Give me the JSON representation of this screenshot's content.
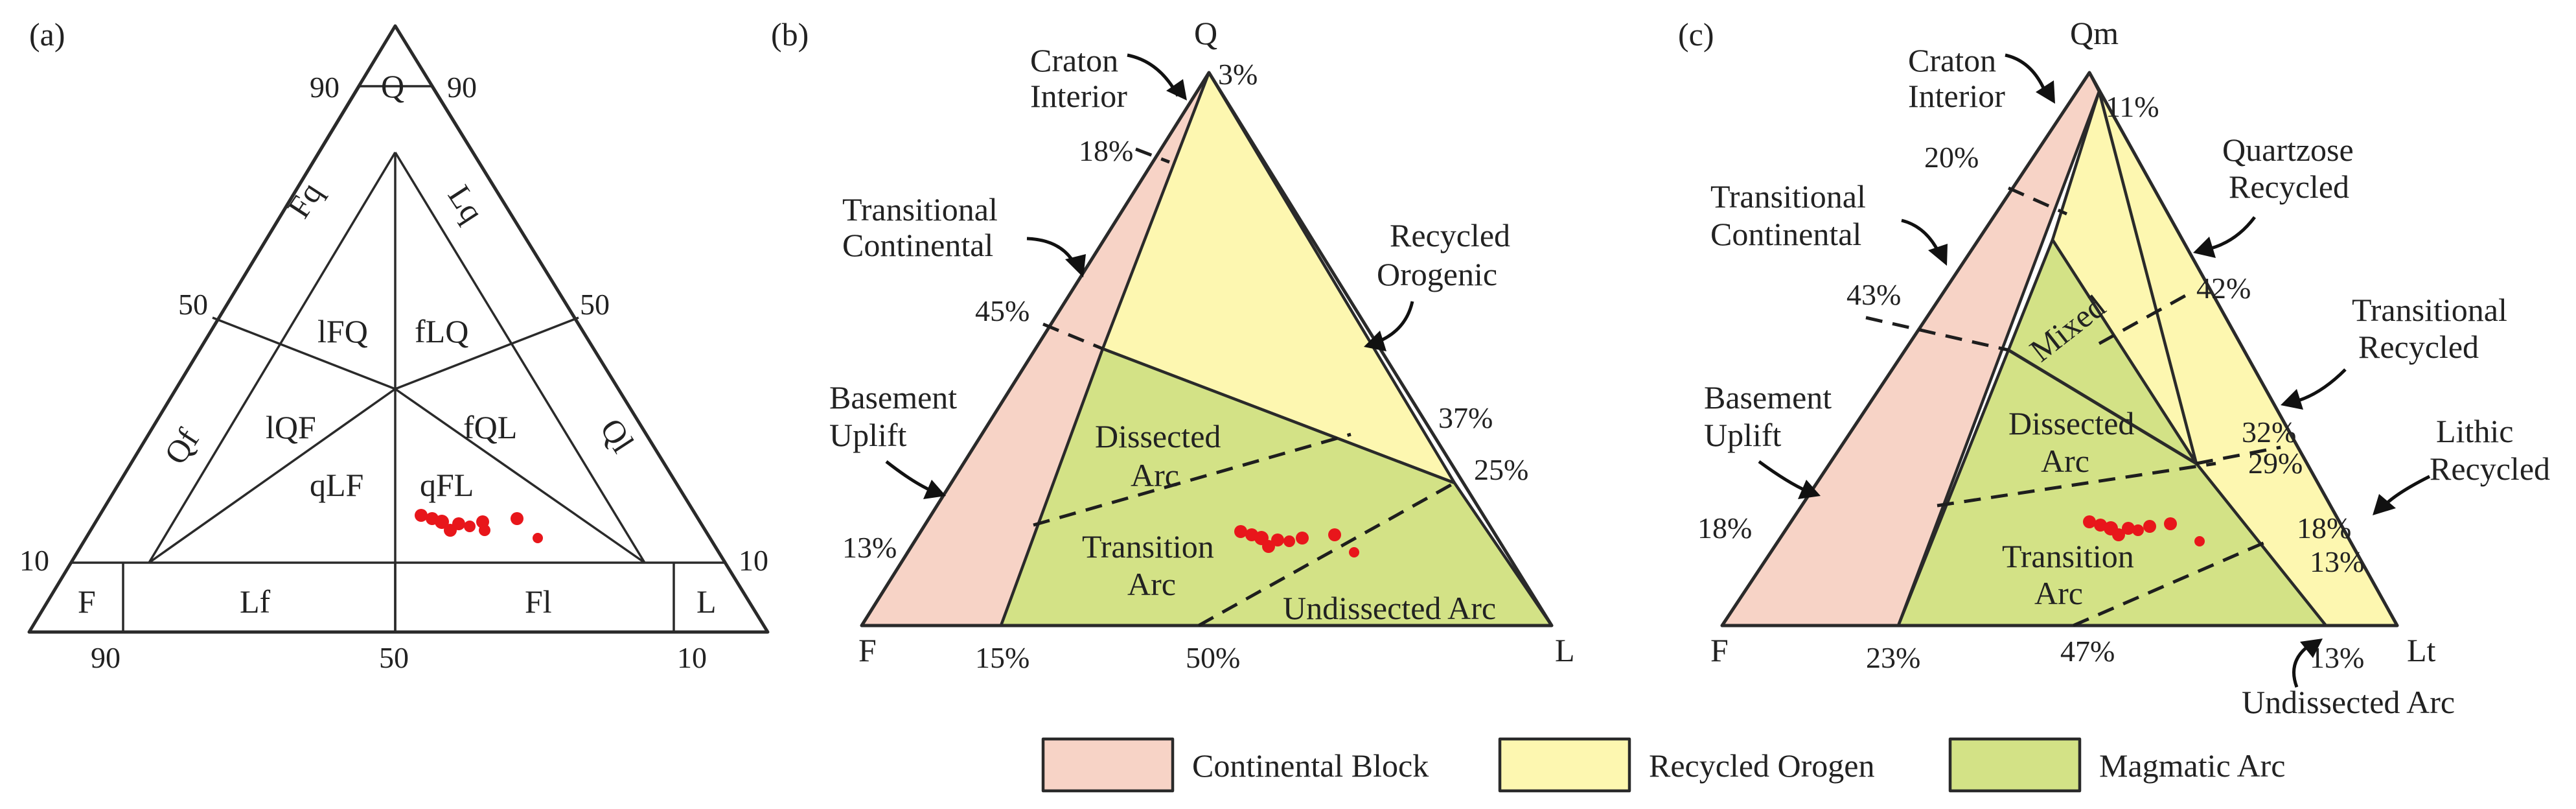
{
  "colors": {
    "continental_block": "#f7d3c6",
    "recycled_orogen": "#fdf7b0",
    "magmatic_arc": "#d3e286",
    "samples": "#e8161b"
  },
  "panel_a": {
    "tag": "(a)",
    "apices": {
      "top": "Q",
      "left": "F",
      "right": "L"
    },
    "ticks": {
      "top_left": "90",
      "top_right": "90",
      "mid_left": "50",
      "mid_right": "50",
      "low_left": "10",
      "low_right": "10",
      "bottom_left": "90",
      "bottom_mid": "50",
      "bottom_right": "10"
    },
    "fields": {
      "fq": "Fq",
      "lq": "Lq",
      "lfq": "lFQ",
      "flq": "fLQ",
      "lqf": "lQF",
      "fql": "fQL",
      "qlf": "qLF",
      "qfl": "qFL",
      "qf": "Qf",
      "ql": "Ql",
      "lf": "Lf",
      "fl": "Fl"
    }
  },
  "panel_b": {
    "tag": "(b)",
    "apices": {
      "top": "Q",
      "left": "F",
      "right": "L"
    },
    "regions": {
      "craton": [
        "Craton",
        "Interior"
      ],
      "transitional": [
        "Transitional",
        "Continental"
      ],
      "recycled": [
        "Recycled",
        "Orogenic"
      ],
      "basement": [
        "Basement",
        "Uplift"
      ],
      "dissected": [
        "Dissected",
        "Arc"
      ],
      "transition_arc": [
        "Transition",
        "Arc"
      ],
      "undissected": "Undissected Arc"
    },
    "percents": {
      "p3": "3%",
      "p18": "18%",
      "p45": "45%",
      "p13": "13%",
      "p15": "15%",
      "p50": "50%",
      "p37": "37%",
      "p25": "25%"
    }
  },
  "panel_c": {
    "tag": "(c)",
    "apices": {
      "top": "Qm",
      "left": "F",
      "right": "Lt"
    },
    "regions": {
      "craton": [
        "Craton",
        "Interior"
      ],
      "transitional": [
        "Transitional",
        "Continental"
      ],
      "quartzose": [
        "Quartzose",
        "Recycled"
      ],
      "trans_recycled": [
        "Transitional",
        "Recycled"
      ],
      "lithic": [
        "Lithic",
        "Recycled"
      ],
      "basement": [
        "Basement",
        "Uplift"
      ],
      "mixed": "Mixed",
      "dissected": [
        "Dissected",
        "Arc"
      ],
      "transition_arc": [
        "Transition",
        "Arc"
      ],
      "undissected": "Undissected Arc"
    },
    "percents": {
      "p11": "11%",
      "p20": "20%",
      "p43": "43%",
      "p18l": "18%",
      "p23": "23%",
      "p47": "47%",
      "p13b": "13%",
      "p42": "42%",
      "p32": "32%",
      "p29": "29%",
      "p18r": "18%",
      "p13r": "13%"
    }
  },
  "legend": {
    "continental": "Continental Block",
    "recycled": "Recycled Orogen",
    "magmatic": "Magmatic Arc"
  }
}
